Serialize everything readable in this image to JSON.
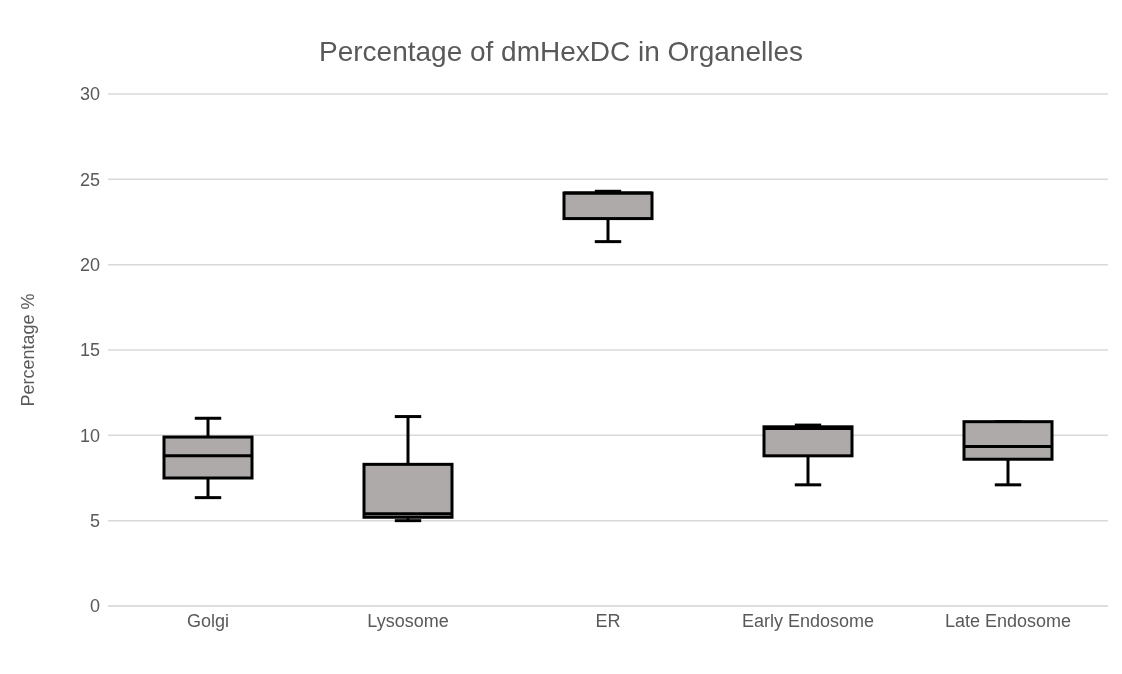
{
  "chart_data": {
    "type": "box",
    "title": "Percentage of dmHexDC in Organelles",
    "ylabel": "Percentage %",
    "categories": [
      "Golgi",
      "Lysosome",
      "ER",
      "Early Endosome",
      "Late Endosome"
    ],
    "color": "#aeaaaa",
    "boxes": [
      {
        "low": 6.35,
        "q1": 7.5,
        "median": 8.8,
        "q3": 9.9,
        "high": 11.0
      },
      {
        "low": 5.0,
        "q1": 5.2,
        "median": 5.4,
        "q3": 8.3,
        "high": 11.1
      },
      {
        "low": 21.35,
        "q1": 22.7,
        "median": 24.2,
        "q3": 24.2,
        "high": 24.3
      },
      {
        "low": 7.1,
        "q1": 8.8,
        "median": 10.4,
        "q3": 10.5,
        "high": 10.6
      },
      {
        "low": 7.1,
        "q1": 8.6,
        "median": 9.35,
        "q3": 10.8,
        "high": 10.8
      }
    ],
    "ylim": [
      0,
      30
    ],
    "yticks": [
      0,
      5,
      10,
      15,
      20,
      25,
      30
    ],
    "grid": "y"
  }
}
